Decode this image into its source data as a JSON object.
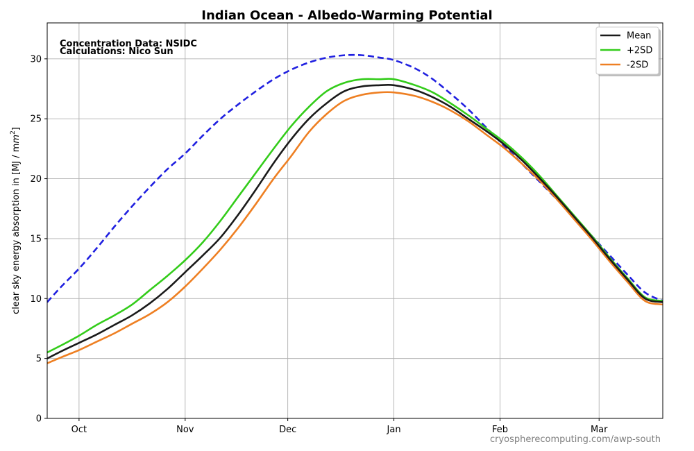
{
  "chart_data": {
    "type": "line",
    "title": "Indian Ocean - Albedo-Warming Potential",
    "ylabel_main": "clear sky energy absorption in  [MJ / m",
    "ylabel_sup": "2",
    "ylabel_tail": "]",
    "xlabel": "",
    "xlim": [
      -9,
      165
    ],
    "ylim": [
      0,
      33
    ],
    "y_ticks": [
      0,
      5,
      10,
      15,
      20,
      25,
      30
    ],
    "x_ticks": [
      {
        "label": "Oct",
        "day": 0
      },
      {
        "label": "Nov",
        "day": 30
      },
      {
        "label": "Dec",
        "day": 59
      },
      {
        "label": "Jan",
        "day": 89
      },
      {
        "label": "Feb",
        "day": 119
      },
      {
        "label": "Mar",
        "day": 147
      }
    ],
    "grid": true,
    "legend_position": "top-right",
    "annotations": [
      "Concentration Data: NSIDC",
      "Calculations: Nico Sun"
    ],
    "credit": "cryospherecomputing.com/awp-south",
    "series": [
      {
        "name": "Mean",
        "color": "#1a1a1a",
        "style": "solid",
        "x": [
          -9,
          -5,
          0,
          5,
          10,
          15,
          20,
          25,
          30,
          35,
          40,
          45,
          50,
          55,
          60,
          65,
          70,
          75,
          80,
          85,
          89,
          95,
          100,
          105,
          110,
          115,
          120,
          125,
          130,
          135,
          140,
          145,
          150,
          155,
          160,
          165
        ],
        "y": [
          5.0,
          5.6,
          6.3,
          7.0,
          7.8,
          8.6,
          9.6,
          10.8,
          12.2,
          13.6,
          15.1,
          17.0,
          19.1,
          21.3,
          23.3,
          25.0,
          26.3,
          27.3,
          27.7,
          27.8,
          27.8,
          27.4,
          26.8,
          26.0,
          25.0,
          24.0,
          22.9,
          21.6,
          20.1,
          18.5,
          16.8,
          15.1,
          13.3,
          11.6,
          10.0,
          9.7
        ]
      },
      {
        "name": "+2SD",
        "color": "#33cc1a",
        "style": "solid",
        "x": [
          -9,
          -5,
          0,
          5,
          10,
          15,
          20,
          25,
          30,
          35,
          40,
          45,
          50,
          55,
          60,
          65,
          70,
          75,
          80,
          85,
          89,
          95,
          100,
          105,
          110,
          115,
          120,
          125,
          130,
          135,
          140,
          145,
          150,
          155,
          160,
          165
        ],
        "y": [
          5.5,
          6.1,
          6.9,
          7.8,
          8.6,
          9.5,
          10.7,
          11.9,
          13.2,
          14.7,
          16.5,
          18.5,
          20.5,
          22.5,
          24.4,
          26.0,
          27.3,
          28.0,
          28.3,
          28.3,
          28.3,
          27.8,
          27.2,
          26.3,
          25.3,
          24.2,
          23.1,
          21.8,
          20.3,
          18.6,
          16.9,
          15.2,
          13.4,
          11.7,
          10.1,
          9.8
        ]
      },
      {
        "name": "-2SD",
        "color": "#ee7f22",
        "style": "solid",
        "x": [
          -9,
          -5,
          0,
          5,
          10,
          15,
          20,
          25,
          30,
          35,
          40,
          45,
          50,
          55,
          60,
          65,
          70,
          75,
          80,
          85,
          89,
          95,
          100,
          105,
          110,
          115,
          120,
          125,
          130,
          135,
          140,
          145,
          150,
          155,
          160,
          165
        ],
        "y": [
          4.6,
          5.1,
          5.7,
          6.4,
          7.1,
          7.9,
          8.7,
          9.7,
          11.0,
          12.5,
          14.1,
          15.9,
          17.9,
          20.0,
          21.9,
          23.9,
          25.4,
          26.5,
          27.0,
          27.2,
          27.2,
          26.9,
          26.4,
          25.7,
          24.8,
          23.7,
          22.6,
          21.3,
          19.9,
          18.3,
          16.6,
          14.9,
          13.1,
          11.4,
          9.8,
          9.5
        ]
      },
      {
        "name": "",
        "color": "#2020e0",
        "style": "dashed",
        "x": [
          -9,
          -5,
          0,
          5,
          10,
          15,
          20,
          25,
          30,
          35,
          40,
          45,
          50,
          55,
          60,
          65,
          70,
          75,
          80,
          85,
          89,
          95,
          100,
          105,
          110,
          115,
          120,
          125,
          130,
          135,
          140,
          145,
          150,
          155,
          160,
          165
        ],
        "y": [
          9.7,
          11.0,
          12.5,
          14.2,
          16.0,
          17.7,
          19.3,
          20.8,
          22.1,
          23.6,
          25.0,
          26.2,
          27.3,
          28.3,
          29.1,
          29.7,
          30.1,
          30.3,
          30.3,
          30.1,
          29.9,
          29.2,
          28.3,
          27.1,
          25.8,
          24.3,
          22.8,
          21.3,
          19.8,
          18.3,
          16.8,
          15.2,
          13.6,
          12.0,
          10.5,
          9.8
        ]
      }
    ]
  }
}
